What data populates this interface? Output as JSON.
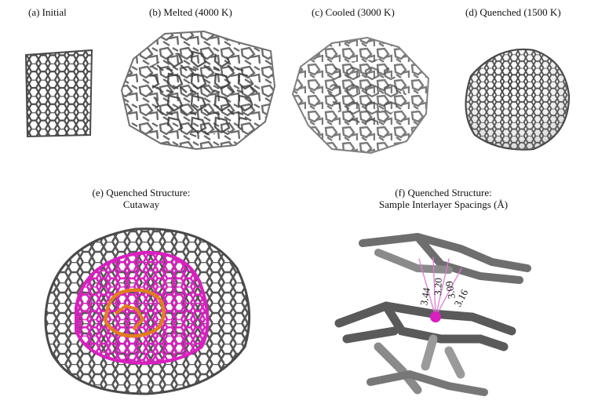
{
  "figure": {
    "panels": [
      {
        "id": "a",
        "caption": "(a) Initial"
      },
      {
        "id": "b",
        "caption": "(b) Melted (4000 K)"
      },
      {
        "id": "c",
        "caption": "(c) Cooled (3000 K)"
      },
      {
        "id": "d",
        "caption": "(d) Quenched (1500 K)"
      },
      {
        "id": "e",
        "caption_line1": "(e) Quenched Structure:",
        "caption_line2": "Cutaway"
      },
      {
        "id": "f",
        "caption_line1": "(f) Quenched Structure:",
        "caption_line2": "Sample Interlayer Spacings (Å)"
      }
    ],
    "spacings": [
      "3.44",
      "3.20",
      "3.09",
      "3.16"
    ],
    "colors": {
      "carbon_dark": "#4a4a4a",
      "carbon_light": "#8f8f8f",
      "inner_shell": "#d91fbf",
      "core": "#e07f1f",
      "spacing_line": "#e37ad6"
    }
  }
}
